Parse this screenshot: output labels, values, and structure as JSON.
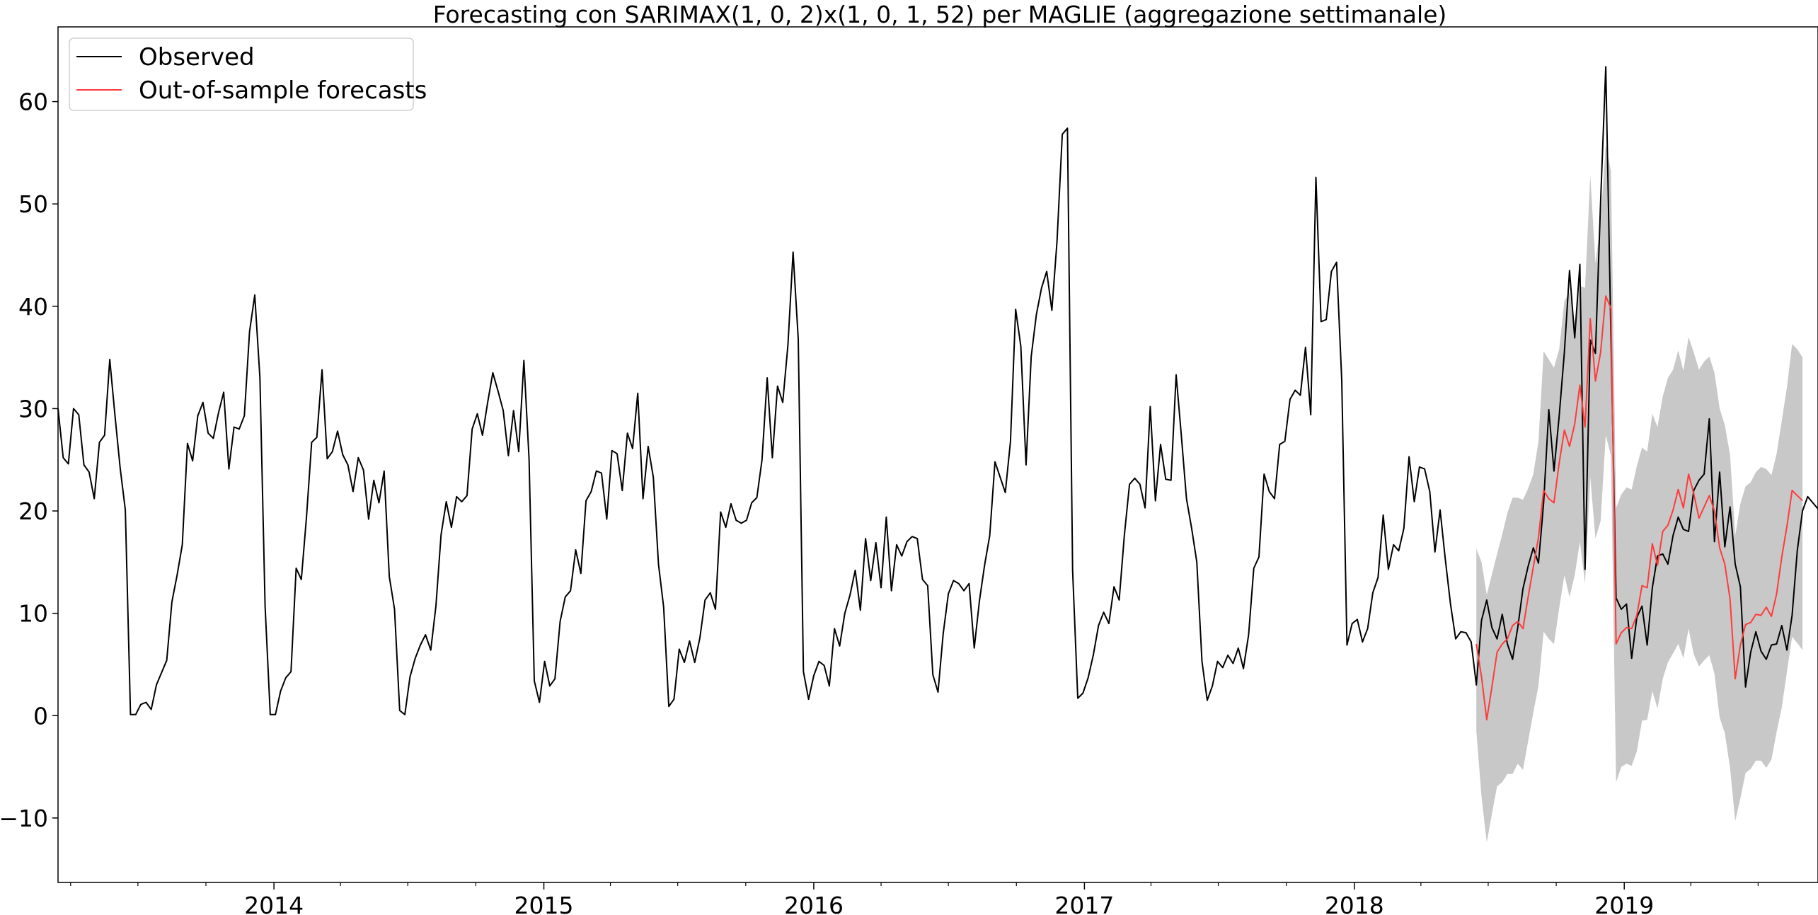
{
  "chart_data": {
    "type": "line",
    "title": "Forecasting con SARIMAX(1, 0, 2)x(1, 0, 1, 52) per MAGLIE (aggregazione settimanale)",
    "xlabel": "",
    "ylabel": "",
    "x_start": "2013-03-15",
    "x_range": [
      "2013-03-15",
      "2019-09-20"
    ],
    "ylim": [
      -16.3,
      67.3
    ],
    "y_ticks": [
      -10,
      0,
      10,
      20,
      30,
      40,
      50,
      60
    ],
    "x_ticks": [
      {
        "date": "2014-01-01",
        "label": "2014"
      },
      {
        "date": "2015-01-01",
        "label": "2015"
      },
      {
        "date": "2016-01-01",
        "label": "2016"
      },
      {
        "date": "2017-01-01",
        "label": "2017"
      },
      {
        "date": "2018-01-01",
        "label": "2018"
      },
      {
        "date": "2019-01-01",
        "label": "2019"
      }
    ],
    "grid": false,
    "legend_position": "top-left",
    "series": [
      {
        "name": "Observed",
        "color": "#000000",
        "frequency": "weekly",
        "start": "2013-03-15",
        "values": [
          30.0,
          25.2,
          24.6,
          30.0,
          29.4,
          24.5,
          23.8,
          21.2,
          26.7,
          27.4,
          34.8,
          29.3,
          24.2,
          20.1,
          0.1,
          0.1,
          1.1,
          1.3,
          0.6,
          3.0,
          4.2,
          5.4,
          11.1,
          13.7,
          16.7,
          26.6,
          24.9,
          29.3,
          30.6,
          27.6,
          27.1,
          29.6,
          31.6,
          24.1,
          28.2,
          28.0,
          29.3,
          37.5,
          41.1,
          33.0,
          10.7,
          0.1,
          0.1,
          2.4,
          3.7,
          4.3,
          14.4,
          13.3,
          19.4,
          26.7,
          27.2,
          33.8,
          25.1,
          25.8,
          27.8,
          25.5,
          24.5,
          21.9,
          25.2,
          24.0,
          19.2,
          23.0,
          20.8,
          23.9,
          13.6,
          10.4,
          0.5,
          0.1,
          3.8,
          5.6,
          6.9,
          7.9,
          6.4,
          10.7,
          17.7,
          20.9,
          18.4,
          21.4,
          20.9,
          21.5,
          28.0,
          29.5,
          27.4,
          30.6,
          33.5,
          31.7,
          29.8,
          25.4,
          29.8,
          25.8,
          34.7,
          25.1,
          3.4,
          1.3,
          5.3,
          2.9,
          3.6,
          9.2,
          11.6,
          12.2,
          16.2,
          13.9,
          21.0,
          21.9,
          23.9,
          23.7,
          19.2,
          25.9,
          25.6,
          22.0,
          27.6,
          26.1,
          31.5,
          21.2,
          26.3,
          23.3,
          14.8,
          10.6,
          0.9,
          1.6,
          6.5,
          5.2,
          7.3,
          5.2,
          7.6,
          11.3,
          12.0,
          10.4,
          19.9,
          18.4,
          20.7,
          19.1,
          18.8,
          19.1,
          20.8,
          21.3,
          25.0,
          33.0,
          25.2,
          32.2,
          30.6,
          36.2,
          45.3,
          36.8,
          4.3,
          1.6,
          3.9,
          5.3,
          4.9,
          2.9,
          8.5,
          6.8,
          10.0,
          11.8,
          14.2,
          10.3,
          17.3,
          13.2,
          16.9,
          12.5,
          19.4,
          12.2,
          16.7,
          15.6,
          17.0,
          17.5,
          17.3,
          13.3,
          12.7,
          4.0,
          2.3,
          8.0,
          11.9,
          13.2,
          12.9,
          12.2,
          12.9,
          6.6,
          11.2,
          14.7,
          17.6,
          24.8,
          23.3,
          21.8,
          26.8,
          39.7,
          36.1,
          24.5,
          35.1,
          39.2,
          41.8,
          43.4,
          39.6,
          46.4,
          56.8,
          57.4,
          14.2,
          1.7,
          2.2,
          3.7,
          5.9,
          8.8,
          10.1,
          9.0,
          12.6,
          11.3,
          17.6,
          22.6,
          23.2,
          22.6,
          20.3,
          30.2,
          21.0,
          26.5,
          23.1,
          23.0,
          33.3,
          27.4,
          21.2,
          18.3,
          15.0,
          5.3,
          1.5,
          2.9,
          5.3,
          4.7,
          5.9,
          5.1,
          6.6,
          4.6,
          7.9,
          14.4,
          15.5,
          23.6,
          21.9,
          21.2,
          26.5,
          26.8,
          30.9,
          31.8,
          31.3,
          36.0,
          29.4,
          52.6,
          38.5,
          38.7,
          43.4,
          44.3,
          32.8,
          6.9,
          9.0,
          9.4,
          7.2,
          8.5,
          12.0,
          13.5,
          19.6,
          14.3,
          16.7,
          16.1,
          18.3,
          25.3,
          20.9,
          24.3,
          24.1,
          21.9,
          16.0,
          20.1,
          15.3,
          10.9,
          7.5,
          8.2,
          8.1,
          7.2,
          3.0,
          9.3,
          11.3,
          8.6,
          7.5,
          9.9,
          7.0,
          5.5,
          8.6,
          12.4,
          14.6,
          16.4,
          14.9,
          20.8,
          29.9,
          23.9,
          29.3,
          35.5,
          43.5,
          36.9,
          44.1,
          14.3,
          36.7,
          35.4,
          50.2,
          63.4,
          37.1,
          11.5,
          10.4,
          10.9,
          5.6,
          9.6,
          10.7,
          6.9,
          12.5,
          15.6,
          15.8,
          14.8,
          17.6,
          19.4,
          18.2,
          18.0,
          22.0,
          23.0,
          23.6,
          29.0,
          17.0,
          23.8,
          16.5,
          20.4,
          14.8,
          12.6,
          2.8,
          6.2,
          8.2,
          6.3,
          5.5,
          6.9,
          7.0,
          8.8,
          6.4,
          9.8,
          16.1,
          20.0,
          21.4,
          20.8,
          20.2
        ]
      },
      {
        "name": "Out-of-sample forecasts",
        "color": "#ff3b3b",
        "frequency": "weekly",
        "start": "2018-06-15",
        "values": [
          7.0,
          3.8,
          -0.4,
          2.8,
          6.2,
          7.0,
          7.5,
          8.8,
          9.2,
          8.5,
          11.6,
          14.5,
          17.4,
          22.0,
          21.2,
          20.8,
          24.7,
          27.9,
          26.3,
          28.5,
          32.3,
          28.2,
          38.8,
          32.7,
          35.5,
          41.0,
          39.8,
          7.0,
          8.1,
          8.6,
          8.5,
          9.8,
          12.7,
          12.5,
          16.8,
          14.7,
          18.0,
          18.6,
          20.1,
          22.1,
          20.3,
          23.6,
          21.7,
          19.3,
          20.4,
          21.5,
          20.0,
          16.4,
          14.8,
          11.4,
          3.6,
          6.9,
          8.9,
          9.1,
          9.9,
          9.8,
          10.6,
          9.7,
          11.9,
          15.5,
          18.5,
          22.0,
          21.5,
          21.0
        ],
        "ci_lower": [
          -1.5,
          -7.9,
          -12.4,
          -9.6,
          -6.9,
          -6.5,
          -5.7,
          -5.7,
          -4.7,
          -5.3,
          -2.5,
          0.3,
          2.9,
          8.2,
          7.5,
          7.0,
          10.5,
          13.7,
          11.6,
          13.7,
          17.0,
          12.9,
          23.3,
          17.3,
          19.0,
          27.4,
          25.4,
          -6.5,
          -5.0,
          -4.7,
          -4.9,
          -3.5,
          -0.5,
          -0.4,
          2.4,
          0.7,
          3.6,
          5.2,
          6.1,
          7.0,
          5.6,
          8.5,
          6.0,
          4.8,
          5.4,
          5.9,
          4.1,
          -0.2,
          -1.7,
          -5.1,
          -10.3,
          -8.1,
          -5.6,
          -5.2,
          -4.4,
          -4.4,
          -5.1,
          -4.3,
          -1.6,
          0.8,
          4.3,
          7.7,
          7.1,
          6.4
        ],
        "ci_upper": [
          16.3,
          15.0,
          11.8,
          13.8,
          15.8,
          17.7,
          19.8,
          21.3,
          21.3,
          21.1,
          22.2,
          23.6,
          26.8,
          35.6,
          34.8,
          34.0,
          35.8,
          40.5,
          41.4,
          38.4,
          42.0,
          41.8,
          52.8,
          44.2,
          48.2,
          55.8,
          53.2,
          20.3,
          21.6,
          22.3,
          22.1,
          24.4,
          26.2,
          25.8,
          29.5,
          28.2,
          31.2,
          33.0,
          33.8,
          35.7,
          33.7,
          37.0,
          35.5,
          33.8,
          34.6,
          35.1,
          33.5,
          30.0,
          28.4,
          25.5,
          17.6,
          20.7,
          22.4,
          22.8,
          23.8,
          24.3,
          24.1,
          23.5,
          25.6,
          28.8,
          32.1,
          36.3,
          35.8,
          35.0
        ]
      }
    ],
    "confidence_band_color": "#c8c8c8"
  }
}
